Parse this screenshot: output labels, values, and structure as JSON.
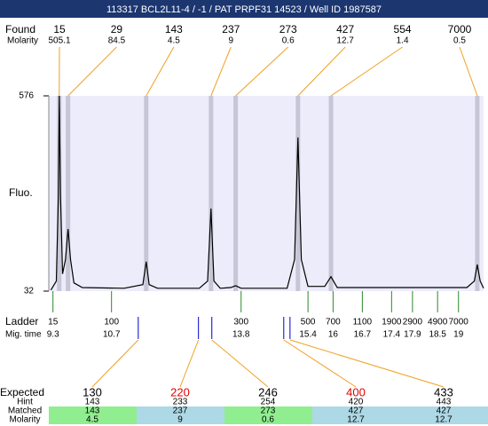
{
  "chart_data": {
    "type": "electropherogram",
    "title": "113317  BCL2L11-4 / -1 / PAT PRPF31 14523 / Well ID 1987587",
    "y_label": "Fluo.",
    "ylim": [
      32,
      576
    ],
    "yticks": [
      32,
      576
    ],
    "xlim": [
      9.2,
      19.6
    ],
    "x": [
      9.25,
      9.38,
      9.43,
      9.45,
      9.48,
      9.53,
      9.6,
      9.66,
      9.72,
      9.8,
      10.0,
      11.0,
      11.45,
      11.53,
      11.6,
      11.8,
      12.8,
      13.0,
      13.08,
      13.15,
      13.3,
      13.55,
      13.67,
      13.8,
      14.9,
      15.08,
      15.16,
      15.24,
      15.4,
      15.8,
      15.95,
      16.1,
      19.2,
      19.38,
      19.45,
      19.52,
      19.6
    ],
    "values": [
      35,
      60,
      300,
      576,
      300,
      80,
      120,
      205,
      120,
      55,
      42,
      40,
      50,
      114,
      50,
      40,
      40,
      60,
      262,
      60,
      40,
      42,
      47,
      40,
      40,
      120,
      460,
      120,
      45,
      45,
      72,
      42,
      42,
      60,
      106,
      60,
      40
    ],
    "color": "#000000",
    "found": {
      "label": "Found",
      "sub_label": "Molarity",
      "peaks": [
        {
          "size": 15,
          "molarity": 505.1,
          "time": 9.45
        },
        {
          "size": 29,
          "molarity": 84.5,
          "time": 9.66
        },
        {
          "size": 143,
          "molarity": 4.5,
          "time": 11.53
        },
        {
          "size": 237,
          "molarity": 9,
          "time": 13.08
        },
        {
          "size": 273,
          "molarity": 0.6,
          "time": 13.67
        },
        {
          "size": 427,
          "molarity": 12.7,
          "time": 15.16
        },
        {
          "size": 554,
          "molarity": 1.4,
          "time": 15.95
        },
        {
          "size": 7000,
          "molarity": 0.5,
          "time": 19.45
        }
      ]
    },
    "ladder": {
      "label": "Ladder",
      "time_label": "Mig. time",
      "sizes": [
        15,
        100,
        300,
        500,
        700,
        1100,
        1900,
        2900,
        4900,
        7000
      ],
      "times": [
        9.3,
        10.7,
        13.8,
        15.4,
        16,
        16.7,
        17.4,
        17.9,
        18.5,
        19
      ]
    },
    "expected": {
      "row_labels": [
        "Expected",
        "Hint",
        "Matched",
        "Molarity"
      ],
      "columns": [
        {
          "expected": 130,
          "hint": 143,
          "matched": 143,
          "molarity": 4.5,
          "time": 11.34,
          "color": "#000000",
          "fill": "#90ee90"
        },
        {
          "expected": 220,
          "hint": 233,
          "matched": 237,
          "molarity": 9,
          "time": 12.78,
          "color": "#e00000",
          "fill": "#add8e6"
        },
        {
          "expected": 246,
          "hint": 254,
          "matched": 273,
          "molarity": 0.6,
          "time": 13.1,
          "color": "#000000",
          "fill": "#90ee90"
        },
        {
          "expected": 400,
          "hint": 420,
          "matched": 427,
          "molarity": 12.7,
          "time": 14.82,
          "color": "#e00000",
          "fill": "#add8e6"
        },
        {
          "expected": 433,
          "hint": 443,
          "matched": 427,
          "molarity": 12.7,
          "time": 14.97,
          "color": "#000000",
          "fill": "#add8e6"
        }
      ]
    }
  }
}
